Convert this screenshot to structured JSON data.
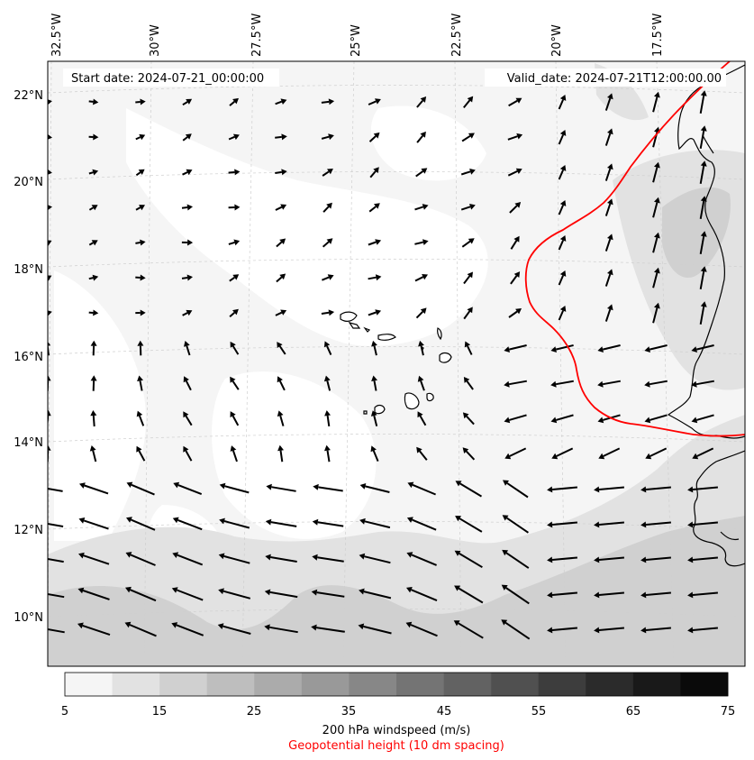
{
  "header": {
    "start_date": "Start date: 2024-07-21_00:00:00",
    "valid_date": "Valid_date: 2024-07-21T12:00:00.00"
  },
  "axes": {
    "lon_labels": [
      "32.5°W",
      "30°W",
      "27.5°W",
      "25°W",
      "22.5°W",
      "20°W",
      "17.5°W"
    ],
    "lat_labels": [
      "22°N",
      "20°N",
      "18°N",
      "16°N",
      "14°N",
      "12°N",
      "10°N"
    ]
  },
  "colorbar": {
    "ticks": [
      "5",
      "15",
      "25",
      "35",
      "45",
      "55",
      "65",
      "75"
    ],
    "levels": [
      "#f5f5f5",
      "#e2e2e2",
      "#d0d0d0",
      "#bebebe",
      "#ababab",
      "#999999",
      "#878787",
      "#747474",
      "#626262",
      "#505050",
      "#3d3d3d",
      "#2b2b2b",
      "#191919",
      "#0a0a0a"
    ],
    "title": "200 hPa windspeed (m/s)",
    "subtitle": "Geopotential height (10 dm spacing)"
  },
  "colors": {
    "contour": "#ff0000",
    "coast": "#000000",
    "arrow": "#000000",
    "grid": "#cfcfcf"
  }
}
